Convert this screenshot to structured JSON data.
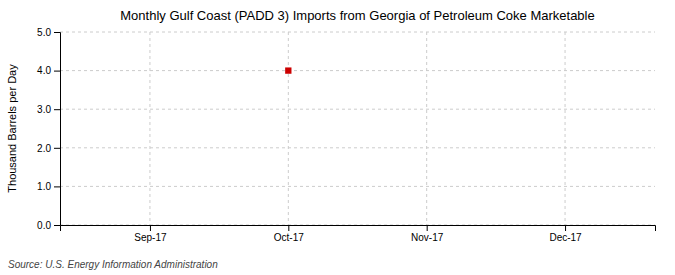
{
  "chart_data": {
    "type": "scatter",
    "title": "Monthly Gulf Coast (PADD 3) Imports from Georgia of Petroleum Coke Marketable",
    "y_label": "Thousand Barrels per Day",
    "source": "Source: U.S. Energy Information Administration",
    "categories": [
      "Sep-17",
      "Oct-17",
      "Nov-17",
      "Dec-17"
    ],
    "values": [
      null,
      4.0,
      null,
      null
    ],
    "color": "#cc0000",
    "marker": "square",
    "ylim": [
      0.0,
      5.0
    ],
    "yticks": [
      {
        "value": 0.0,
        "label": "0.0"
      },
      {
        "value": 1.0,
        "label": "1.0"
      },
      {
        "value": 2.0,
        "label": "2.0"
      },
      {
        "value": 3.0,
        "label": "3.0"
      },
      {
        "value": 4.0,
        "label": "4.0"
      },
      {
        "value": 5.0,
        "label": "5.0"
      }
    ],
    "grid": true
  }
}
